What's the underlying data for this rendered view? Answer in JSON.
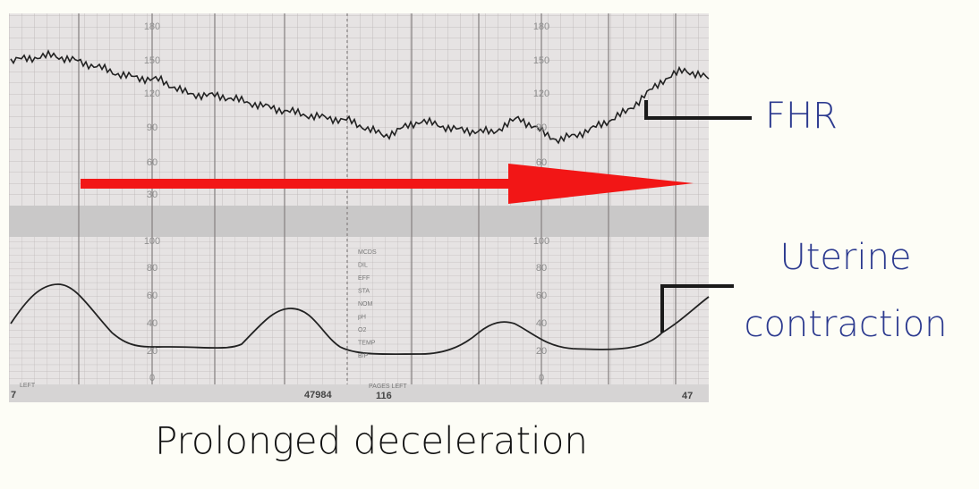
{
  "fhr_scale": [
    "180",
    "150",
    "120",
    "90",
    "60",
    "30"
  ],
  "contraction_scale": [
    "100",
    "80",
    "60",
    "40",
    "20",
    "0"
  ],
  "chart_notes": [
    "MCDS",
    "DIL",
    "EFF",
    "STA",
    "NOM",
    "pH",
    "O2",
    "TEMP",
    "B/P"
  ],
  "strip_footer": {
    "left": "LEFT",
    "page_start": "7",
    "paper_id": "47984",
    "pages_left_label": "PAGES LEFT",
    "pages_left": "116",
    "page_end": "47"
  },
  "labels": {
    "fhr": "FHR",
    "uterine_1": "Uterine",
    "uterine_2": "contraction",
    "caption": "Prolonged deceleration"
  }
}
